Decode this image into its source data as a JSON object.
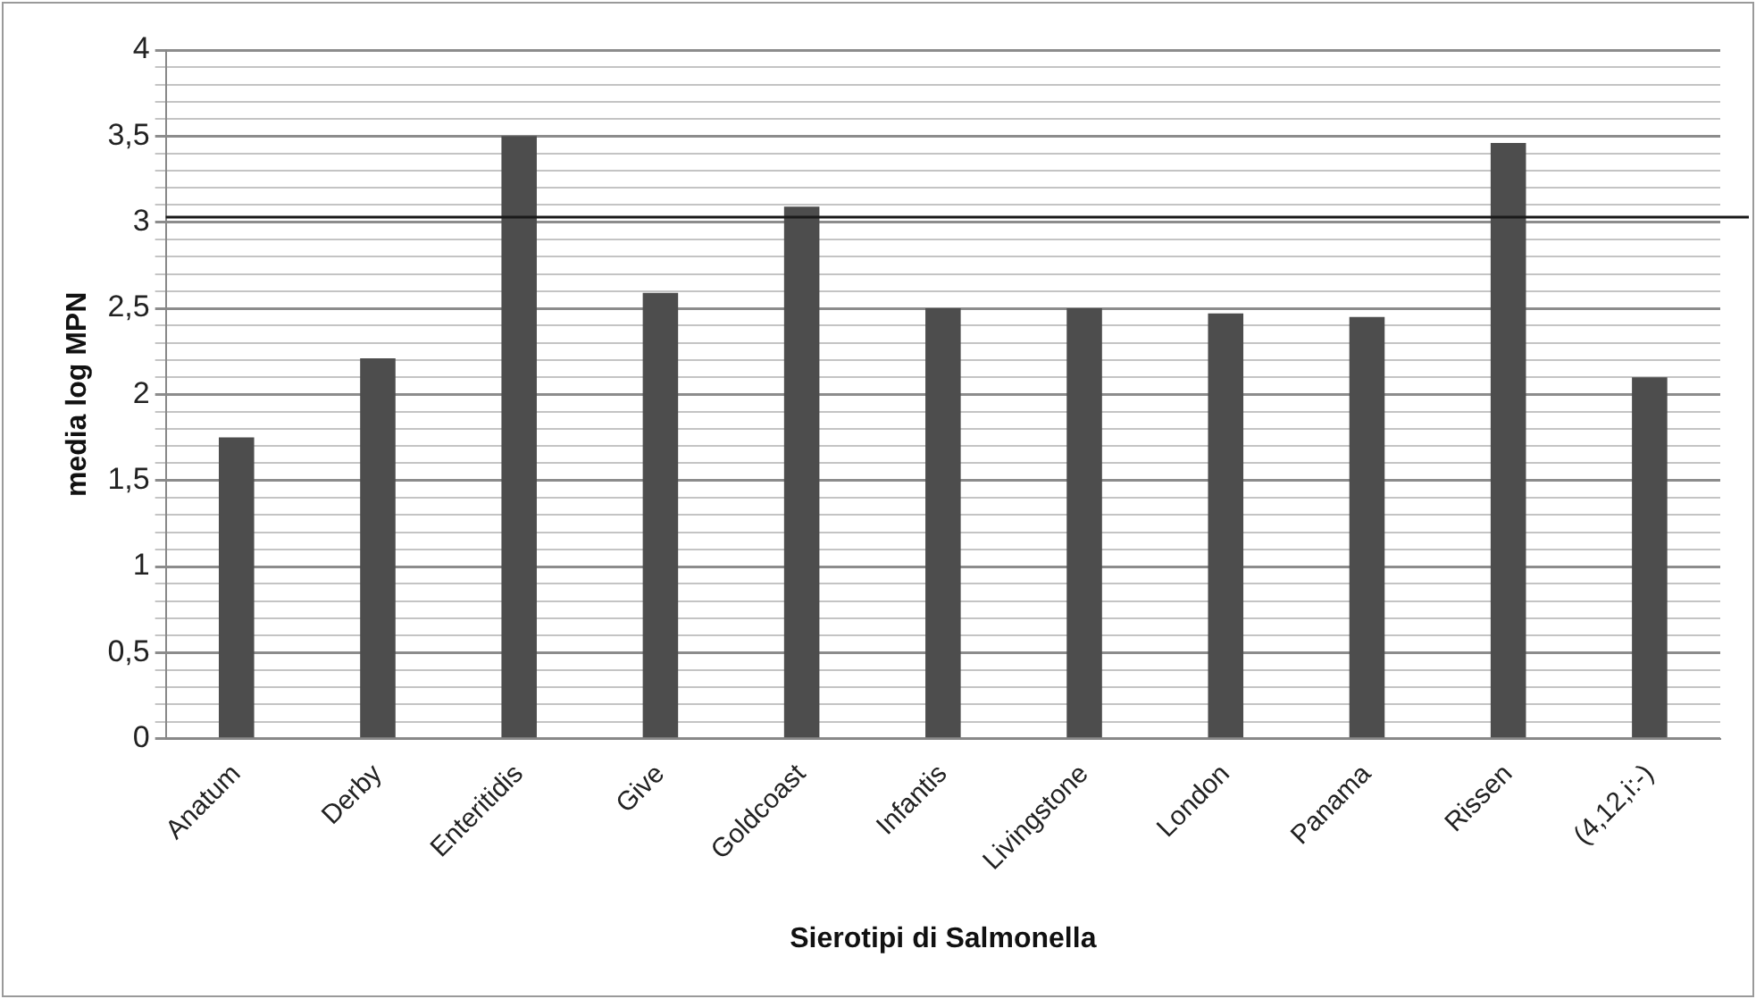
{
  "chart_data": {
    "type": "bar",
    "xlabel": "Sierotipi di Salmonella",
    "ylabel": "media log MPN",
    "categories": [
      "Anatum",
      "Derby",
      "Enteritidis",
      "Give",
      "Goldcoast",
      "Infantis",
      "Livingstone",
      "London",
      "Panama",
      "Rissen",
      "(4,12,i:-)"
    ],
    "values": [
      1.75,
      2.21,
      3.5,
      2.59,
      3.09,
      2.5,
      2.5,
      2.47,
      2.45,
      3.46,
      2.1
    ],
    "color": "#4d4d4d",
    "ylim": [
      0,
      4
    ],
    "yticks": [
      0,
      {
        "value": 0.1,
        "label": null
      },
      {
        "value": 0.2,
        "label": null
      },
      {
        "value": 0.3,
        "label": null
      },
      {
        "value": 0.4,
        "label": null
      },
      {
        "value": 0.5,
        "label": "0,5"
      },
      {
        "value": 0.6,
        "label": null
      },
      {
        "value": 0.7,
        "label": null
      },
      {
        "value": 0.8,
        "label": null
      },
      {
        "value": 0.9,
        "label": null
      },
      1,
      {
        "value": 1.1,
        "label": null
      },
      {
        "value": 1.2,
        "label": null
      },
      {
        "value": 1.3,
        "label": null
      },
      {
        "value": 1.4,
        "label": null
      },
      {
        "value": 1.5,
        "label": "1,5"
      },
      {
        "value": 1.6,
        "label": null
      },
      {
        "value": 1.7,
        "label": null
      },
      {
        "value": 1.8,
        "label": null
      },
      {
        "value": 1.9,
        "label": null
      },
      2,
      {
        "value": 2.1,
        "label": null
      },
      {
        "value": 2.2,
        "label": null
      },
      {
        "value": 2.3,
        "label": null
      },
      {
        "value": 2.4,
        "label": null
      },
      {
        "value": 2.5,
        "label": "2,5"
      },
      {
        "value": 2.6,
        "label": null
      },
      {
        "value": 2.7,
        "label": null
      },
      {
        "value": 2.8,
        "label": null
      },
      {
        "value": 2.9,
        "label": null
      },
      3,
      {
        "value": 3.1,
        "label": null
      },
      {
        "value": 3.2,
        "label": null
      },
      {
        "value": 3.3,
        "label": null
      },
      {
        "value": 3.4,
        "label": null
      },
      {
        "value": 3.5,
        "label": "3,5"
      },
      {
        "value": 3.6,
        "label": null
      },
      {
        "value": 3.7,
        "label": null
      },
      {
        "value": 3.8,
        "label": null
      },
      {
        "value": 3.9,
        "label": null
      },
      4
    ],
    "grid": "y",
    "ref_lines": [
      {
        "axis": "y",
        "value": 3.03,
        "color": "#1a1a1a"
      }
    ],
    "legend": false
  }
}
